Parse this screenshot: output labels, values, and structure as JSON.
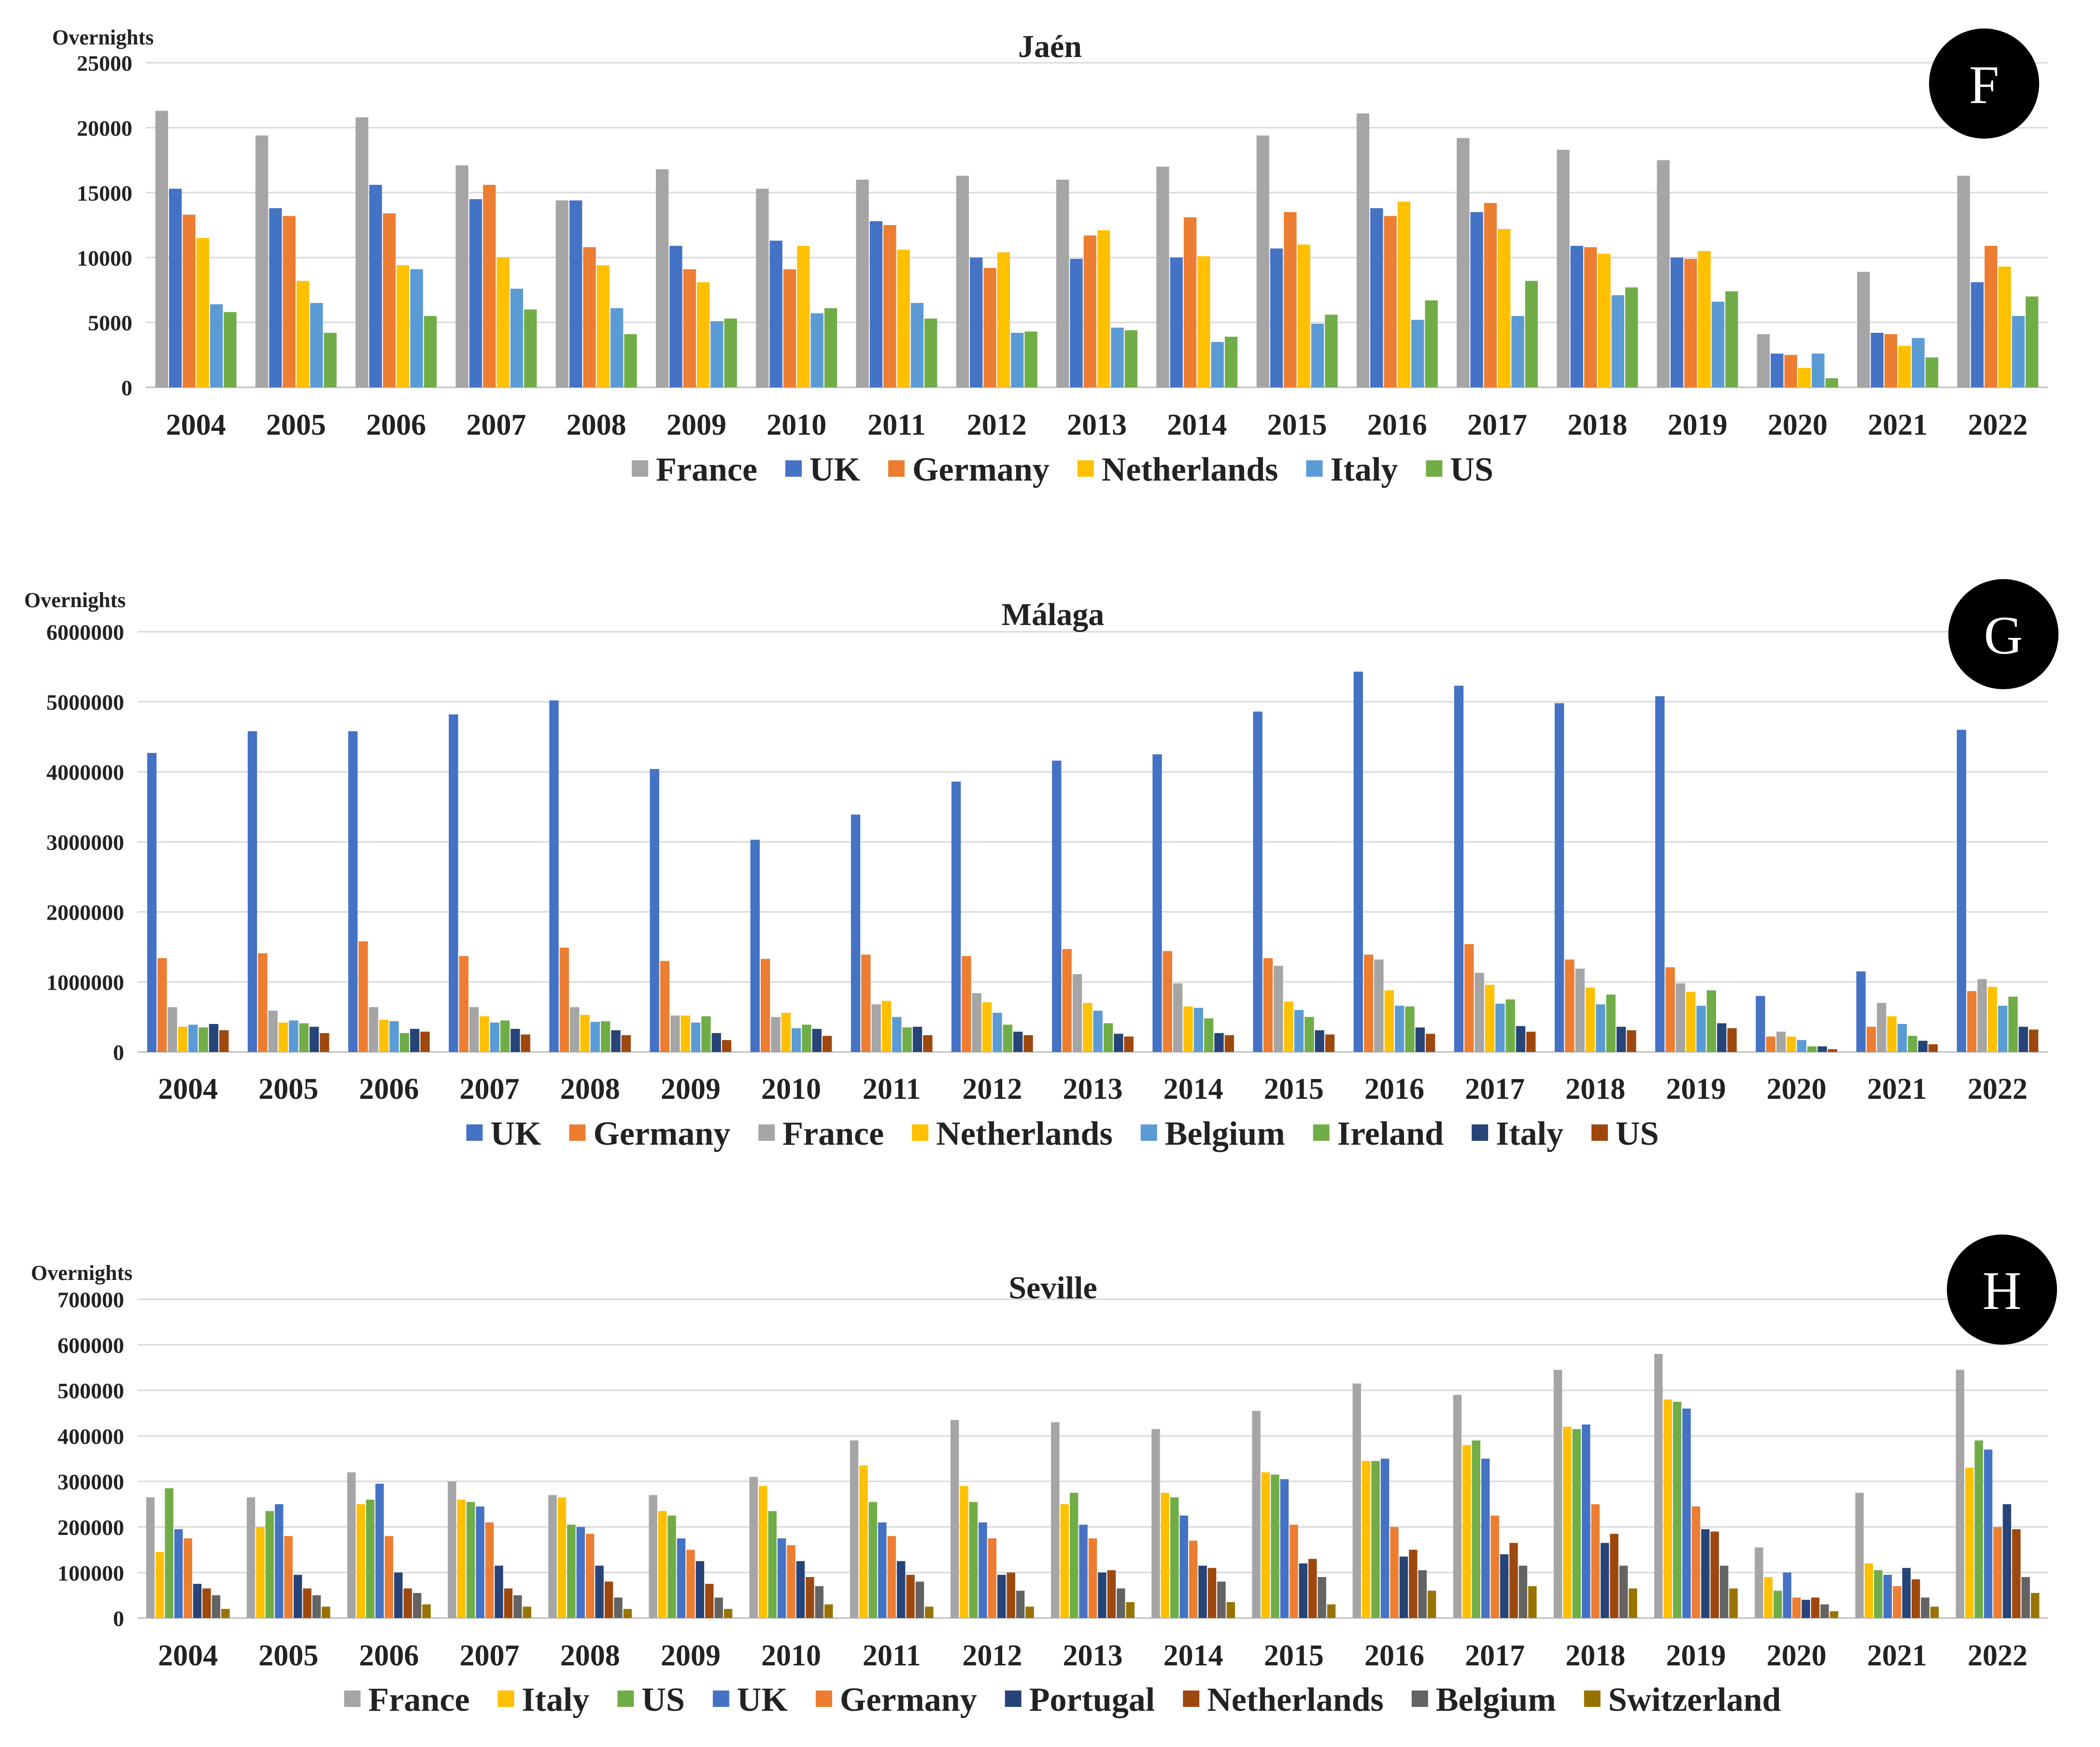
{
  "chart_data": [
    {
      "type": "bar",
      "panel": "F",
      "title": "Jaén",
      "ylabel": "Overnights",
      "ylim": [
        0,
        25000
      ],
      "yticks": [
        0,
        5000,
        10000,
        15000,
        20000,
        25000
      ],
      "ytick_labels": [
        "0",
        "5000",
        "10000",
        "15000",
        "20000",
        "25000"
      ],
      "categories": [
        "2004",
        "2005",
        "2006",
        "2007",
        "2008",
        "2009",
        "2010",
        "2011",
        "2012",
        "2013",
        "2014",
        "2015",
        "2016",
        "2017",
        "2018",
        "2019",
        "2020",
        "2021",
        "2022"
      ],
      "series": [
        {
          "name": "France",
          "color": "#a5a5a5",
          "values": [
            21300,
            19400,
            20800,
            17100,
            14400,
            16800,
            15300,
            16000,
            16300,
            16000,
            17000,
            19400,
            21100,
            19200,
            18300,
            17500,
            4100,
            8900,
            16300
          ]
        },
        {
          "name": "UK",
          "color": "#4472c4",
          "values": [
            15300,
            13800,
            15600,
            14500,
            14400,
            10900,
            11300,
            12800,
            10000,
            9900,
            10000,
            10700,
            13800,
            13500,
            10900,
            10000,
            2600,
            4200,
            8100
          ]
        },
        {
          "name": "Germany",
          "color": "#ed7d31",
          "values": [
            13300,
            13200,
            13400,
            15600,
            10800,
            9100,
            9100,
            12500,
            9200,
            11700,
            13100,
            13500,
            13200,
            14200,
            10800,
            9900,
            2500,
            4100,
            10900
          ]
        },
        {
          "name": "Netherlands",
          "color": "#ffc000",
          "values": [
            11500,
            8200,
            9400,
            10000,
            9400,
            8100,
            10900,
            10600,
            10400,
            12100,
            10100,
            11000,
            14300,
            12200,
            10300,
            10500,
            1500,
            3200,
            9300
          ]
        },
        {
          "name": "Italy",
          "color": "#5b9bd5",
          "values": [
            6400,
            6500,
            9100,
            7600,
            6100,
            5100,
            5700,
            6500,
            4200,
            4600,
            3500,
            4900,
            5200,
            5500,
            7100,
            6600,
            2600,
            3800,
            5500
          ]
        },
        {
          "name": "US",
          "color": "#70ad47",
          "values": [
            5800,
            4200,
            5500,
            6000,
            4100,
            5300,
            6100,
            5300,
            4300,
            4400,
            3900,
            5600,
            6700,
            8200,
            7700,
            7400,
            700,
            2300,
            7000
          ]
        }
      ]
    },
    {
      "type": "bar",
      "panel": "G",
      "title": "Málaga",
      "ylabel": "Overnights",
      "ylim": [
        0,
        6000000
      ],
      "yticks": [
        0,
        1000000,
        2000000,
        3000000,
        4000000,
        5000000,
        6000000
      ],
      "ytick_labels": [
        "0",
        "1000000",
        "2000000",
        "3000000",
        "4000000",
        "5000000",
        "6000000"
      ],
      "categories": [
        "2004",
        "2005",
        "2006",
        "2007",
        "2008",
        "2009",
        "2010",
        "2011",
        "2012",
        "2013",
        "2014",
        "2015",
        "2016",
        "2017",
        "2018",
        "2019",
        "2020",
        "2021",
        "2022"
      ],
      "series": [
        {
          "name": "UK",
          "color": "#4472c4",
          "values": [
            4270000,
            4580000,
            4580000,
            4820000,
            5020000,
            4040000,
            3030000,
            3390000,
            3860000,
            4160000,
            4250000,
            4860000,
            5430000,
            5230000,
            4980000,
            5080000,
            800000,
            1150000,
            4600000
          ]
        },
        {
          "name": "Germany",
          "color": "#ed7d31",
          "values": [
            1340000,
            1410000,
            1580000,
            1370000,
            1490000,
            1300000,
            1330000,
            1390000,
            1370000,
            1470000,
            1440000,
            1340000,
            1390000,
            1540000,
            1320000,
            1210000,
            220000,
            360000,
            870000
          ]
        },
        {
          "name": "France",
          "color": "#a5a5a5",
          "values": [
            640000,
            590000,
            640000,
            640000,
            640000,
            520000,
            500000,
            680000,
            840000,
            1110000,
            980000,
            1230000,
            1320000,
            1130000,
            1190000,
            980000,
            290000,
            700000,
            1040000
          ]
        },
        {
          "name": "Netherlands",
          "color": "#ffc000",
          "values": [
            360000,
            420000,
            460000,
            510000,
            530000,
            520000,
            560000,
            730000,
            710000,
            700000,
            650000,
            720000,
            880000,
            960000,
            920000,
            860000,
            220000,
            510000,
            930000
          ]
        },
        {
          "name": "Belgium",
          "color": "#5b9bd5",
          "values": [
            390000,
            450000,
            440000,
            420000,
            430000,
            420000,
            340000,
            500000,
            560000,
            590000,
            630000,
            600000,
            660000,
            690000,
            680000,
            660000,
            170000,
            400000,
            660000
          ]
        },
        {
          "name": "Ireland",
          "color": "#70ad47",
          "values": [
            350000,
            410000,
            270000,
            450000,
            440000,
            510000,
            390000,
            350000,
            390000,
            410000,
            480000,
            500000,
            650000,
            750000,
            820000,
            880000,
            80000,
            230000,
            790000
          ]
        },
        {
          "name": "Italy",
          "color": "#264478",
          "values": [
            400000,
            360000,
            330000,
            330000,
            310000,
            270000,
            330000,
            360000,
            290000,
            260000,
            270000,
            310000,
            350000,
            370000,
            360000,
            410000,
            80000,
            160000,
            360000
          ]
        },
        {
          "name": "US",
          "color": "#9e480e",
          "values": [
            310000,
            270000,
            290000,
            250000,
            240000,
            170000,
            230000,
            240000,
            240000,
            220000,
            240000,
            250000,
            260000,
            290000,
            310000,
            340000,
            40000,
            110000,
            320000
          ]
        }
      ]
    },
    {
      "type": "bar",
      "panel": "H",
      "title": "Seville",
      "ylabel": "Overnights",
      "ylim": [
        0,
        700000
      ],
      "yticks": [
        0,
        100000,
        200000,
        300000,
        400000,
        500000,
        600000,
        700000
      ],
      "ytick_labels": [
        "0",
        "100000",
        "200000",
        "300000",
        "400000",
        "500000",
        "600000",
        "700000"
      ],
      "categories": [
        "2004",
        "2005",
        "2006",
        "2007",
        "2008",
        "2009",
        "2010",
        "2011",
        "2012",
        "2013",
        "2014",
        "2015",
        "2016",
        "2017",
        "2018",
        "2019",
        "2020",
        "2021",
        "2022"
      ],
      "series": [
        {
          "name": "France",
          "color": "#a5a5a5",
          "values": [
            265000,
            265000,
            320000,
            300000,
            270000,
            270000,
            310000,
            390000,
            435000,
            430000,
            415000,
            455000,
            515000,
            490000,
            545000,
            580000,
            155000,
            275000,
            545000
          ]
        },
        {
          "name": "Italy",
          "color": "#ffc000",
          "values": [
            145000,
            200000,
            250000,
            260000,
            265000,
            235000,
            290000,
            335000,
            290000,
            250000,
            275000,
            320000,
            345000,
            380000,
            420000,
            480000,
            90000,
            120000,
            330000
          ]
        },
        {
          "name": "US",
          "color": "#70ad47",
          "values": [
            285000,
            235000,
            260000,
            255000,
            205000,
            225000,
            235000,
            255000,
            255000,
            275000,
            265000,
            315000,
            345000,
            390000,
            415000,
            475000,
            60000,
            105000,
            390000
          ]
        },
        {
          "name": "UK",
          "color": "#4472c4",
          "values": [
            195000,
            250000,
            295000,
            245000,
            200000,
            175000,
            175000,
            210000,
            210000,
            205000,
            225000,
            305000,
            350000,
            350000,
            425000,
            460000,
            100000,
            95000,
            370000
          ]
        },
        {
          "name": "Germany",
          "color": "#ed7d31",
          "values": [
            175000,
            180000,
            180000,
            210000,
            185000,
            150000,
            160000,
            180000,
            175000,
            175000,
            170000,
            205000,
            200000,
            225000,
            250000,
            245000,
            45000,
            70000,
            200000
          ]
        },
        {
          "name": "Portugal",
          "color": "#264478",
          "values": [
            75000,
            95000,
            100000,
            115000,
            115000,
            125000,
            125000,
            125000,
            95000,
            100000,
            115000,
            120000,
            135000,
            140000,
            165000,
            195000,
            40000,
            110000,
            250000
          ]
        },
        {
          "name": "Netherlands",
          "color": "#9e480e",
          "values": [
            65000,
            65000,
            65000,
            65000,
            80000,
            75000,
            90000,
            95000,
            100000,
            105000,
            110000,
            130000,
            150000,
            165000,
            185000,
            190000,
            45000,
            85000,
            195000
          ]
        },
        {
          "name": "Belgium",
          "color": "#636363",
          "values": [
            50000,
            50000,
            55000,
            50000,
            45000,
            45000,
            70000,
            80000,
            60000,
            65000,
            80000,
            90000,
            105000,
            115000,
            115000,
            115000,
            30000,
            45000,
            90000
          ]
        },
        {
          "name": "Switzerland",
          "color": "#997300",
          "values": [
            20000,
            25000,
            30000,
            25000,
            20000,
            20000,
            30000,
            25000,
            25000,
            35000,
            35000,
            30000,
            60000,
            70000,
            65000,
            65000,
            15000,
            25000,
            55000
          ]
        }
      ]
    }
  ],
  "panel_badges": [
    "F",
    "G",
    "H"
  ]
}
